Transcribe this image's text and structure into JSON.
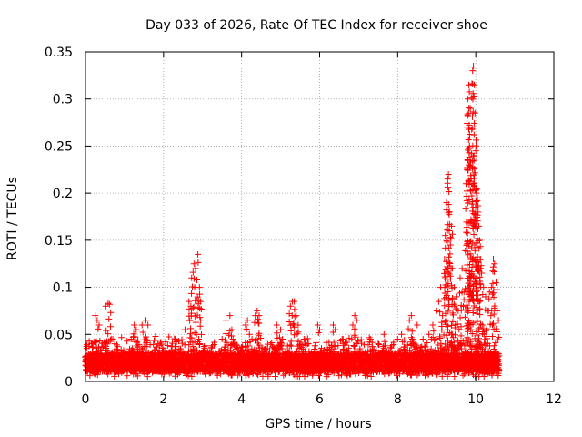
{
  "chart_data": {
    "type": "scatter",
    "title": "Day 033 of 2026, Rate Of TEC Index for receiver shoe",
    "xlabel": "GPS time / hours",
    "ylabel": "ROTI / TECUs",
    "xlim": [
      0,
      12
    ],
    "ylim": [
      0,
      0.35
    ],
    "xticks": [
      0,
      2,
      4,
      6,
      8,
      10,
      12
    ],
    "yticks": [
      0,
      0.05,
      0.1,
      0.15,
      0.2,
      0.25,
      0.3,
      0.35
    ],
    "xtick_labels": [
      "0",
      "2",
      "4",
      "6",
      "8",
      "10",
      "12"
    ],
    "ytick_labels": [
      "0",
      "0.05",
      "0.1",
      "0.15",
      "0.2",
      "0.25",
      "0.3",
      "0.35"
    ],
    "grid": true,
    "marker": "+",
    "color": "#ff0000",
    "series": [
      {
        "name": "ROTI",
        "x_range": [
          0.0,
          10.6
        ],
        "baseline": [
          0.01,
          0.03
        ],
        "points": [
          {
            "x": 0.25,
            "y": 0.07
          },
          {
            "x": 0.3,
            "y": 0.065
          },
          {
            "x": 0.35,
            "y": 0.06
          },
          {
            "x": 0.52,
            "y": 0.08
          },
          {
            "x": 0.58,
            "y": 0.083
          },
          {
            "x": 0.62,
            "y": 0.082
          },
          {
            "x": 0.7,
            "y": 0.045
          },
          {
            "x": 0.75,
            "y": 0.04
          },
          {
            "x": 1.25,
            "y": 0.06
          },
          {
            "x": 1.3,
            "y": 0.055
          },
          {
            "x": 1.45,
            "y": 0.06
          },
          {
            "x": 1.55,
            "y": 0.065
          },
          {
            "x": 1.6,
            "y": 0.06
          },
          {
            "x": 2.3,
            "y": 0.045
          },
          {
            "x": 2.55,
            "y": 0.055
          },
          {
            "x": 2.65,
            "y": 0.085
          },
          {
            "x": 2.7,
            "y": 0.08
          },
          {
            "x": 2.72,
            "y": 0.11
          },
          {
            "x": 2.78,
            "y": 0.125
          },
          {
            "x": 2.82,
            "y": 0.12
          },
          {
            "x": 2.88,
            "y": 0.135
          },
          {
            "x": 2.92,
            "y": 0.1
          },
          {
            "x": 2.95,
            "y": 0.085
          },
          {
            "x": 3.5,
            "y": 0.045
          },
          {
            "x": 3.6,
            "y": 0.065
          },
          {
            "x": 3.7,
            "y": 0.07
          },
          {
            "x": 3.75,
            "y": 0.055
          },
          {
            "x": 4.1,
            "y": 0.06
          },
          {
            "x": 4.15,
            "y": 0.065
          },
          {
            "x": 4.2,
            "y": 0.05
          },
          {
            "x": 4.35,
            "y": 0.07
          },
          {
            "x": 4.4,
            "y": 0.075
          },
          {
            "x": 4.45,
            "y": 0.07
          },
          {
            "x": 4.9,
            "y": 0.06
          },
          {
            "x": 5.0,
            "y": 0.055
          },
          {
            "x": 5.05,
            "y": 0.045
          },
          {
            "x": 5.25,
            "y": 0.08
          },
          {
            "x": 5.3,
            "y": 0.085
          },
          {
            "x": 5.35,
            "y": 0.085
          },
          {
            "x": 5.4,
            "y": 0.07
          },
          {
            "x": 5.45,
            "y": 0.06
          },
          {
            "x": 5.6,
            "y": 0.045
          },
          {
            "x": 5.7,
            "y": 0.04
          },
          {
            "x": 5.95,
            "y": 0.06
          },
          {
            "x": 6.0,
            "y": 0.055
          },
          {
            "x": 6.35,
            "y": 0.06
          },
          {
            "x": 6.4,
            "y": 0.055
          },
          {
            "x": 6.6,
            "y": 0.045
          },
          {
            "x": 6.85,
            "y": 0.06
          },
          {
            "x": 6.9,
            "y": 0.07
          },
          {
            "x": 6.95,
            "y": 0.065
          },
          {
            "x": 7.3,
            "y": 0.045
          },
          {
            "x": 7.5,
            "y": 0.04
          },
          {
            "x": 7.65,
            "y": 0.05
          },
          {
            "x": 8.0,
            "y": 0.045
          },
          {
            "x": 8.1,
            "y": 0.05
          },
          {
            "x": 8.3,
            "y": 0.065
          },
          {
            "x": 8.35,
            "y": 0.07
          },
          {
            "x": 8.5,
            "y": 0.06
          },
          {
            "x": 8.65,
            "y": 0.045
          },
          {
            "x": 8.8,
            "y": 0.05
          },
          {
            "x": 8.9,
            "y": 0.06
          },
          {
            "x": 9.0,
            "y": 0.075
          },
          {
            "x": 9.05,
            "y": 0.085
          },
          {
            "x": 9.1,
            "y": 0.1
          },
          {
            "x": 9.15,
            "y": 0.07
          },
          {
            "x": 9.2,
            "y": 0.13
          },
          {
            "x": 9.22,
            "y": 0.155
          },
          {
            "x": 9.25,
            "y": 0.19
          },
          {
            "x": 9.28,
            "y": 0.215
          },
          {
            "x": 9.3,
            "y": 0.22
          },
          {
            "x": 9.32,
            "y": 0.16
          },
          {
            "x": 9.35,
            "y": 0.145
          },
          {
            "x": 9.38,
            "y": 0.165
          },
          {
            "x": 9.4,
            "y": 0.12
          },
          {
            "x": 9.45,
            "y": 0.1
          },
          {
            "x": 9.5,
            "y": 0.09
          },
          {
            "x": 9.55,
            "y": 0.075
          },
          {
            "x": 9.6,
            "y": 0.11
          },
          {
            "x": 9.65,
            "y": 0.12
          },
          {
            "x": 9.7,
            "y": 0.095
          },
          {
            "x": 9.75,
            "y": 0.21
          },
          {
            "x": 9.78,
            "y": 0.27
          },
          {
            "x": 9.8,
            "y": 0.3
          },
          {
            "x": 9.82,
            "y": 0.315
          },
          {
            "x": 9.84,
            "y": 0.25
          },
          {
            "x": 9.86,
            "y": 0.29
          },
          {
            "x": 9.88,
            "y": 0.215
          },
          {
            "x": 9.9,
            "y": 0.17
          },
          {
            "x": 9.92,
            "y": 0.33
          },
          {
            "x": 9.94,
            "y": 0.335
          },
          {
            "x": 9.96,
            "y": 0.315
          },
          {
            "x": 9.98,
            "y": 0.285
          },
          {
            "x": 10.0,
            "y": 0.245
          },
          {
            "x": 10.02,
            "y": 0.2
          },
          {
            "x": 10.04,
            "y": 0.195
          },
          {
            "x": 10.06,
            "y": 0.18
          },
          {
            "x": 10.08,
            "y": 0.165
          },
          {
            "x": 10.1,
            "y": 0.15
          },
          {
            "x": 10.12,
            "y": 0.13
          },
          {
            "x": 10.15,
            "y": 0.115
          },
          {
            "x": 10.2,
            "y": 0.1
          },
          {
            "x": 10.25,
            "y": 0.09
          },
          {
            "x": 10.3,
            "y": 0.075
          },
          {
            "x": 10.35,
            "y": 0.095
          },
          {
            "x": 10.4,
            "y": 0.1
          },
          {
            "x": 10.45,
            "y": 0.13
          },
          {
            "x": 10.48,
            "y": 0.125
          },
          {
            "x": 10.52,
            "y": 0.105
          },
          {
            "x": 10.55,
            "y": 0.075
          },
          {
            "x": 10.58,
            "y": 0.065
          }
        ]
      }
    ]
  }
}
